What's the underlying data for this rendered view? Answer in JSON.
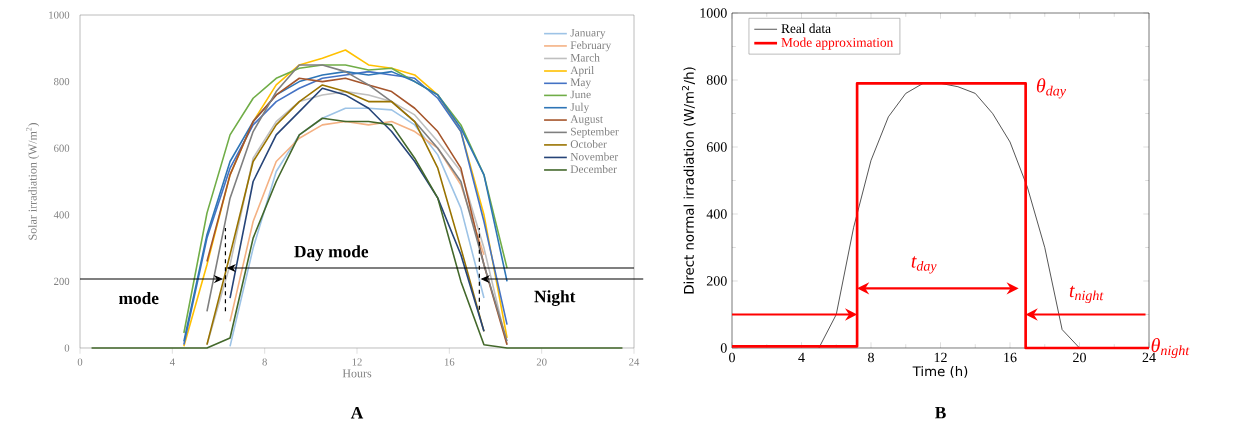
{
  "chart_data": [
    {
      "type": "line",
      "xlabel": "Hours",
      "ylabel": "Solar irradiation (W/m$^{2}$)",
      "xlim": [
        0,
        24
      ],
      "xticks": [
        0,
        4,
        8,
        12,
        16,
        20,
        24
      ],
      "ylim": [
        0,
        1000
      ],
      "yticks": [
        0,
        200,
        400,
        600,
        800,
        1000
      ],
      "legend": "top right",
      "marker": "none",
      "x": [
        0.5,
        1.5,
        2.5,
        3.5,
        4.5,
        5.5,
        6.5,
        7.5,
        8.5,
        9.5,
        10.5,
        11.5,
        12.5,
        13.5,
        14.5,
        15.5,
        16.5,
        17.5,
        18.5,
        19.5,
        20.5,
        21.5,
        22.5,
        23.5
      ],
      "series": [
        {
          "name": "January",
          "color": "#9dc3e6",
          "values": [
            null,
            null,
            null,
            null,
            null,
            null,
            5,
            300,
            530,
            640,
            690,
            720,
            720,
            715,
            670,
            580,
            420,
            150,
            null,
            null,
            null,
            null,
            null,
            null
          ]
        },
        {
          "name": "February",
          "color": "#f4b183",
          "values": [
            null,
            null,
            null,
            null,
            null,
            null,
            80,
            380,
            560,
            630,
            670,
            680,
            670,
            680,
            650,
            600,
            490,
            280,
            null,
            null,
            null,
            null,
            null,
            null
          ]
        },
        {
          "name": "March",
          "color": "#bfbfbf",
          "values": [
            null,
            null,
            null,
            null,
            null,
            10,
            250,
            570,
            680,
            740,
            760,
            770,
            760,
            740,
            700,
            620,
            530,
            300,
            10,
            null,
            null,
            null,
            null,
            null
          ]
        },
        {
          "name": "April",
          "color": "#ffc000",
          "values": [
            null,
            null,
            null,
            null,
            5,
            250,
            520,
            680,
            790,
            850,
            870,
            895,
            850,
            840,
            820,
            760,
            650,
            400,
            30,
            null,
            null,
            null,
            null,
            null
          ]
        },
        {
          "name": "May",
          "color": "#4472c4",
          "values": [
            null,
            null,
            null,
            null,
            10,
            330,
            540,
            670,
            740,
            780,
            810,
            820,
            830,
            820,
            810,
            750,
            650,
            380,
            70,
            null,
            null,
            null,
            null,
            null
          ]
        },
        {
          "name": "June",
          "color": "#70ad47",
          "values": [
            null,
            null,
            null,
            null,
            45,
            405,
            640,
            750,
            810,
            840,
            850,
            850,
            835,
            840,
            800,
            760,
            670,
            520,
            240,
            null,
            null,
            null,
            null,
            null
          ]
        },
        {
          "name": "July",
          "color": "#2e75b6",
          "values": [
            null,
            null,
            null,
            null,
            20,
            340,
            560,
            680,
            760,
            800,
            820,
            830,
            820,
            830,
            800,
            760,
            660,
            520,
            200,
            null,
            null,
            null,
            null,
            null
          ]
        },
        {
          "name": "August",
          "color": "#a5552b",
          "values": [
            null,
            null,
            null,
            null,
            null,
            260,
            520,
            680,
            760,
            810,
            800,
            810,
            790,
            770,
            720,
            650,
            540,
            250,
            10,
            null,
            null,
            null,
            null,
            null
          ]
        },
        {
          "name": "September",
          "color": "#7f7f7f",
          "values": [
            null,
            null,
            null,
            null,
            null,
            110,
            450,
            650,
            770,
            850,
            850,
            830,
            790,
            740,
            680,
            600,
            500,
            250,
            20,
            null,
            null,
            null,
            null,
            null
          ]
        },
        {
          "name": "October",
          "color": "#997300",
          "values": [
            null,
            null,
            null,
            null,
            null,
            10,
            280,
            560,
            670,
            740,
            790,
            770,
            740,
            740,
            680,
            540,
            300,
            50,
            null,
            null,
            null,
            null,
            null,
            null
          ]
        },
        {
          "name": "November",
          "color": "#264478",
          "values": [
            null,
            null,
            null,
            null,
            null,
            null,
            150,
            500,
            640,
            710,
            780,
            760,
            720,
            650,
            560,
            450,
            280,
            50,
            null,
            null,
            null,
            null,
            null,
            null
          ]
        },
        {
          "name": "December",
          "color": "#43682b",
          "values": [
            0,
            0,
            0,
            0,
            0,
            0,
            30,
            330,
            500,
            640,
            690,
            680,
            680,
            670,
            570,
            450,
            200,
            10,
            0,
            0,
            0,
            0,
            0,
            0
          ]
        },
        {
          "color": "#000000",
          "line_style": "dashed",
          "x": [
            6.3,
            6.3
          ],
          "values": [
            110,
            360
          ]
        },
        {
          "color": "#000000",
          "line_style": "dashed",
          "x": [
            17.3,
            17.3
          ],
          "values": [
            115,
            360
          ]
        }
      ],
      "annotations": [
        "Day mode",
        "mode",
        "Night",
        "A"
      ]
    },
    {
      "type": "line",
      "xlabel": "Time (h)",
      "ylabel": "Direct normal irradiation (W/m$^{2}$/h)",
      "xlim": [
        0,
        24
      ],
      "xticks": [
        0,
        4,
        8,
        12,
        16,
        20,
        24
      ],
      "ylim": [
        0,
        1000
      ],
      "yticks": [
        0,
        200,
        400,
        600,
        800,
        1000
      ],
      "legend": "top left",
      "marker": "none",
      "series": [
        {
          "name": "Real data",
          "color": "#000000",
          "x": [
            5,
            6,
            7,
            8,
            9,
            10,
            11,
            12,
            13,
            14,
            15,
            16,
            17,
            18,
            19,
            20
          ],
          "values": [
            0,
            100,
            360,
            560,
            690,
            760,
            790,
            790,
            780,
            760,
            700,
            615,
            480,
            300,
            55,
            0
          ]
        },
        {
          "name": "Mode approximation",
          "type": "step",
          "color": "#ff0000",
          "x": [
            0,
            7.2,
            16.9,
            24
          ],
          "values": [
            5,
            790,
            0,
            0
          ]
        }
      ],
      "annotations": [
        "θ$_{day}$",
        "t$_{day}$",
        "t$_{night}$",
        "θ$_{night}$",
        "B"
      ]
    }
  ]
}
